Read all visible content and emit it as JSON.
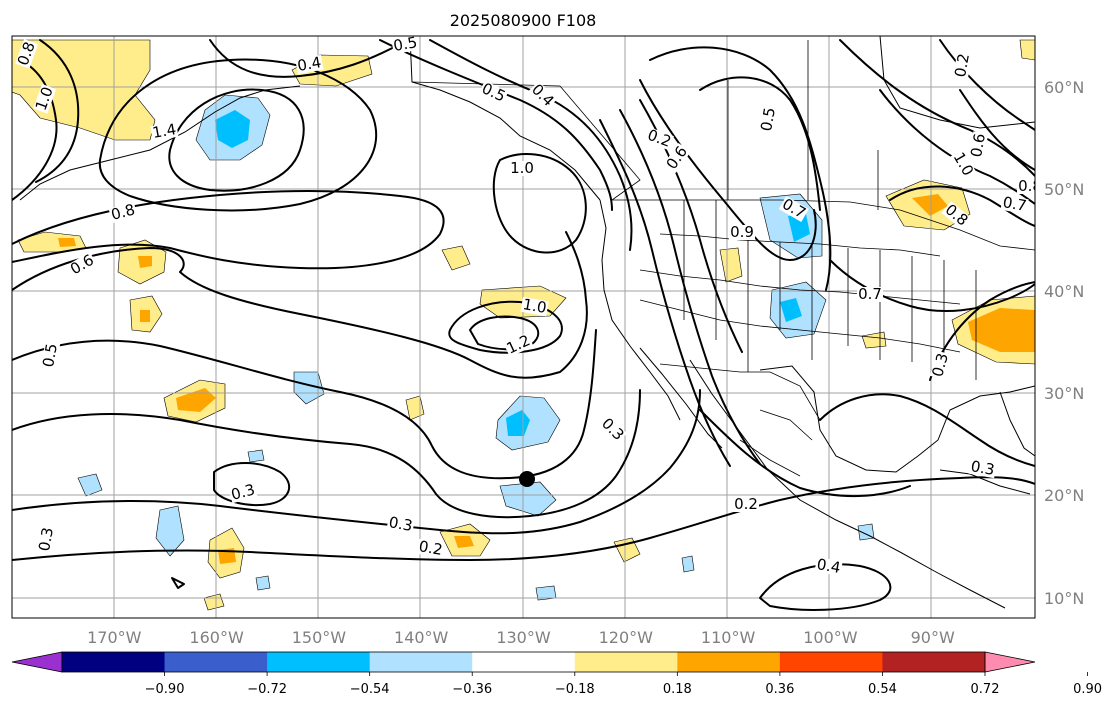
{
  "title": "2025080900 F108",
  "map": {
    "lon_range": [
      -180,
      -80
    ],
    "lat_range": [
      8,
      65
    ],
    "lon_ticks": [
      "170°W",
      "160°W",
      "150°W",
      "140°W",
      "130°W",
      "120°W",
      "110°W",
      "100°W",
      "90°W"
    ],
    "lat_ticks": [
      "60°N",
      "50°N",
      "40°N",
      "30°N",
      "20°N",
      "10°N"
    ],
    "grid": true,
    "contour_labels": [
      "0.8",
      "1.0",
      "1.4",
      "0.4",
      "0.5",
      "0.5",
      "0.4",
      "1.0",
      "0.8",
      "0.6",
      "0.5",
      "1.0",
      "1.2",
      "0.3",
      "0.3",
      "0.3",
      "0.2",
      "0.3",
      "0.2",
      "0.6",
      "0.5",
      "0.7",
      "0.7",
      "0.8",
      "0.9",
      "0.6",
      "1.0",
      "0.8",
      "0.7",
      "0.3",
      "0.4",
      "0.2",
      "0.3",
      "0.2"
    ],
    "marker": "storm-center-dot"
  },
  "colorbar": {
    "ticks": [
      "−0.90",
      "−0.72",
      "−0.54",
      "−0.36",
      "−0.18",
      "0.18",
      "0.36",
      "0.54",
      "0.72",
      "0.90"
    ],
    "colors": [
      "#9b30d0",
      "#000080",
      "#3a5fcd",
      "#00bfff",
      "#b0e2ff",
      "#ffffff",
      "#ffec8b",
      "#ffa500",
      "#ff4500",
      "#b22222",
      "#ff8cb0"
    ],
    "extend": "both"
  }
}
